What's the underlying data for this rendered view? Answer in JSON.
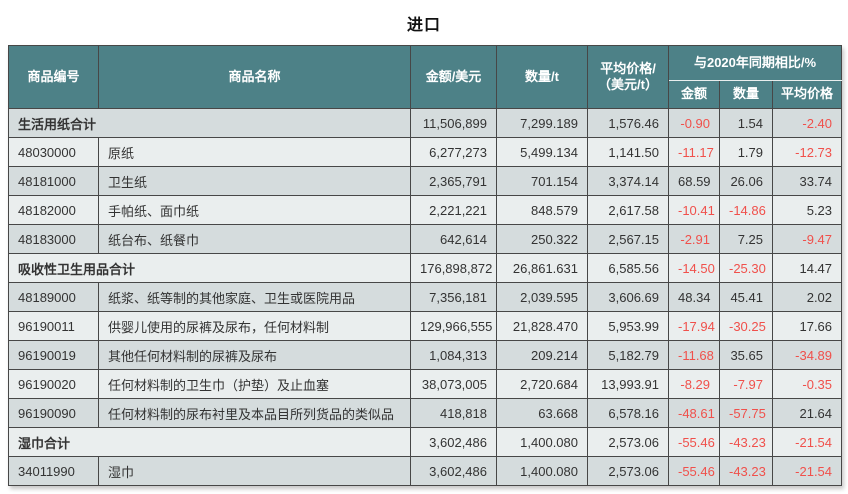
{
  "title": "进口",
  "colors": {
    "header_bg": "#4d8187",
    "header_text": "#ffffff",
    "row_dark": "#d5dcdd",
    "row_light": "#eaeeee",
    "border": "#474747",
    "text": "#333333",
    "negative": "#f0504b"
  },
  "table": {
    "headers": {
      "code": "商品编号",
      "name": "商品名称",
      "amount": "金额/美元",
      "quantity": "数量/t",
      "avg_price_line1": "平均价格/",
      "avg_price_line2": "（美元/t）",
      "yoy_group": "与2020年同期相比/%",
      "yoy_amount": "金额",
      "yoy_quantity": "数量",
      "yoy_avg_price": "平均价格"
    },
    "rows": [
      {
        "total": true,
        "code": "",
        "name": "生活用纸合计",
        "amount": "11,506,899",
        "quantity": "7,299.189",
        "avg_price": "1,576.46",
        "yoy_amount": "-0.90",
        "yoy_quantity": "1.54",
        "yoy_avg_price": "-2.40"
      },
      {
        "total": false,
        "code": "48030000",
        "name": "原纸",
        "amount": "6,277,273",
        "quantity": "5,499.134",
        "avg_price": "1,141.50",
        "yoy_amount": "-11.17",
        "yoy_quantity": "1.79",
        "yoy_avg_price": "-12.73"
      },
      {
        "total": false,
        "code": "48181000",
        "name": "卫生纸",
        "amount": "2,365,791",
        "quantity": "701.154",
        "avg_price": "3,374.14",
        "yoy_amount": "68.59",
        "yoy_quantity": "26.06",
        "yoy_avg_price": "33.74"
      },
      {
        "total": false,
        "code": "48182000",
        "name": "手帕纸、面巾纸",
        "amount": "2,221,221",
        "quantity": "848.579",
        "avg_price": "2,617.58",
        "yoy_amount": "-10.41",
        "yoy_quantity": "-14.86",
        "yoy_avg_price": "5.23"
      },
      {
        "total": false,
        "code": "48183000",
        "name": "纸台布、纸餐巾",
        "amount": "642,614",
        "quantity": "250.322",
        "avg_price": "2,567.15",
        "yoy_amount": "-2.91",
        "yoy_quantity": "7.25",
        "yoy_avg_price": "-9.47"
      },
      {
        "total": true,
        "code": "",
        "name": "吸收性卫生用品合计",
        "amount": "176,898,872",
        "quantity": "26,861.631",
        "avg_price": "6,585.56",
        "yoy_amount": "-14.50",
        "yoy_quantity": "-25.30",
        "yoy_avg_price": "14.47"
      },
      {
        "total": false,
        "code": "48189000",
        "name": "纸浆、纸等制的其他家庭、卫生或医院用品",
        "amount": "7,356,181",
        "quantity": "2,039.595",
        "avg_price": "3,606.69",
        "yoy_amount": "48.34",
        "yoy_quantity": "45.41",
        "yoy_avg_price": "2.02"
      },
      {
        "total": false,
        "code": "96190011",
        "name": "供婴儿使用的尿裤及尿布，任何材料制",
        "amount": "129,966,555",
        "quantity": "21,828.470",
        "avg_price": "5,953.99",
        "yoy_amount": "-17.94",
        "yoy_quantity": "-30.25",
        "yoy_avg_price": "17.66"
      },
      {
        "total": false,
        "code": "96190019",
        "name": "其他任何材料制的尿裤及尿布",
        "amount": "1,084,313",
        "quantity": "209.214",
        "avg_price": "5,182.79",
        "yoy_amount": "-11.68",
        "yoy_quantity": "35.65",
        "yoy_avg_price": "-34.89"
      },
      {
        "total": false,
        "code": "96190020",
        "name": "任何材料制的卫生巾（护垫）及止血塞",
        "amount": "38,073,005",
        "quantity": "2,720.684",
        "avg_price": "13,993.91",
        "yoy_amount": "-8.29",
        "yoy_quantity": "-7.97",
        "yoy_avg_price": "-0.35"
      },
      {
        "total": false,
        "code": "96190090",
        "name": "任何材料制的尿布衬里及本品目所列货品的类似品",
        "amount": "418,818",
        "quantity": "63.668",
        "avg_price": "6,578.16",
        "yoy_amount": "-48.61",
        "yoy_quantity": "-57.75",
        "yoy_avg_price": "21.64"
      },
      {
        "total": true,
        "code": "",
        "name": "湿巾合计",
        "amount": "3,602,486",
        "quantity": "1,400.080",
        "avg_price": "2,573.06",
        "yoy_amount": "-55.46",
        "yoy_quantity": "-43.23",
        "yoy_avg_price": "-21.54"
      },
      {
        "total": false,
        "code": "34011990",
        "name": "湿巾",
        "amount": "3,602,486",
        "quantity": "1,400.080",
        "avg_price": "2,573.06",
        "yoy_amount": "-55.46",
        "yoy_quantity": "-43.23",
        "yoy_avg_price": "-21.54"
      }
    ]
  }
}
